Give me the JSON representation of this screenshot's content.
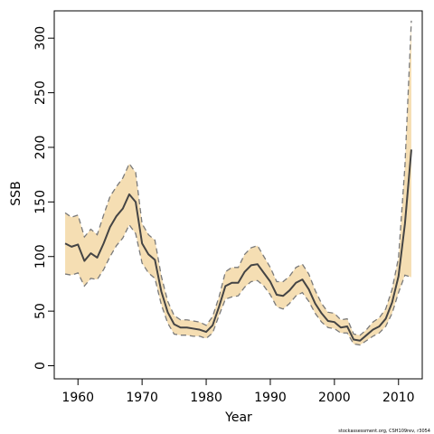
{
  "chart_data": {
    "type": "line",
    "xlabel": "Year",
    "ylabel": "SSB",
    "xlim": [
      1956.3,
      2013.7
    ],
    "ylim": [
      -12,
      325
    ],
    "x_ticks": [
      1960,
      1970,
      1980,
      1990,
      2000,
      2010
    ],
    "y_ticks": [
      0,
      50,
      100,
      150,
      200,
      250,
      300
    ],
    "grid": false,
    "legend": "none",
    "colors": {
      "band_fill": "#f5deb3",
      "band_edge": "#7a7a7a",
      "estimate_line": "#444444",
      "axes": "#000000"
    },
    "series": [
      {
        "x": [
          1958,
          1959,
          1960,
          1961,
          1962,
          1963,
          1964,
          1965,
          1966,
          1967,
          1968,
          1969,
          1970,
          1971,
          1972,
          1973,
          1974,
          1975,
          1976,
          1977,
          1978,
          1979,
          1980,
          1981,
          1982,
          1983,
          1984,
          1985,
          1986,
          1987,
          1988,
          1989,
          1990,
          1991,
          1992,
          1993,
          1994,
          1995,
          1996,
          1997,
          1998,
          1999,
          2000,
          2001,
          2002,
          2003,
          2004,
          2005,
          2006,
          2007,
          2008,
          2009,
          2010,
          2011,
          2012
        ],
        "values": [
          112,
          109,
          111,
          96,
          103,
          99,
          112,
          127,
          137,
          144,
          157,
          150,
          112,
          102,
          97,
          68,
          49,
          38,
          35,
          35,
          34,
          33,
          31,
          37,
          54,
          73,
          76,
          76,
          86,
          92,
          93,
          85,
          77,
          65,
          64,
          69,
          76,
          79,
          70,
          57,
          48,
          41,
          40,
          35,
          36,
          24,
          23,
          28,
          33,
          36,
          43,
          58,
          82,
          130,
          198
        ],
        "lower": [
          84,
          83,
          85,
          73,
          80,
          79,
          88,
          100,
          110,
          117,
          129,
          121,
          94,
          85,
          80,
          56,
          39,
          29,
          28,
          28,
          27,
          27,
          25,
          30,
          46,
          61,
          63,
          64,
          72,
          77,
          78,
          73,
          65,
          54,
          52,
          57,
          64,
          67,
          59,
          48,
          40,
          35,
          34,
          30,
          30,
          20,
          19,
          23,
          27,
          30,
          36,
          48,
          67,
          83,
          81
        ],
        "upper": [
          140,
          136,
          138,
          118,
          125,
          120,
          138,
          155,
          164,
          172,
          185,
          177,
          130,
          120,
          115,
          82,
          59,
          46,
          42,
          42,
          41,
          40,
          37,
          45,
          63,
          86,
          90,
          90,
          102,
          108,
          110,
          100,
          90,
          77,
          77,
          82,
          90,
          93,
          84,
          69,
          57,
          49,
          48,
          42,
          43,
          29,
          28,
          33,
          40,
          44,
          52,
          70,
          99,
          183,
          316
        ]
      }
    ]
  },
  "footnote": "stockassessment.org, CSH109rev, r3054"
}
